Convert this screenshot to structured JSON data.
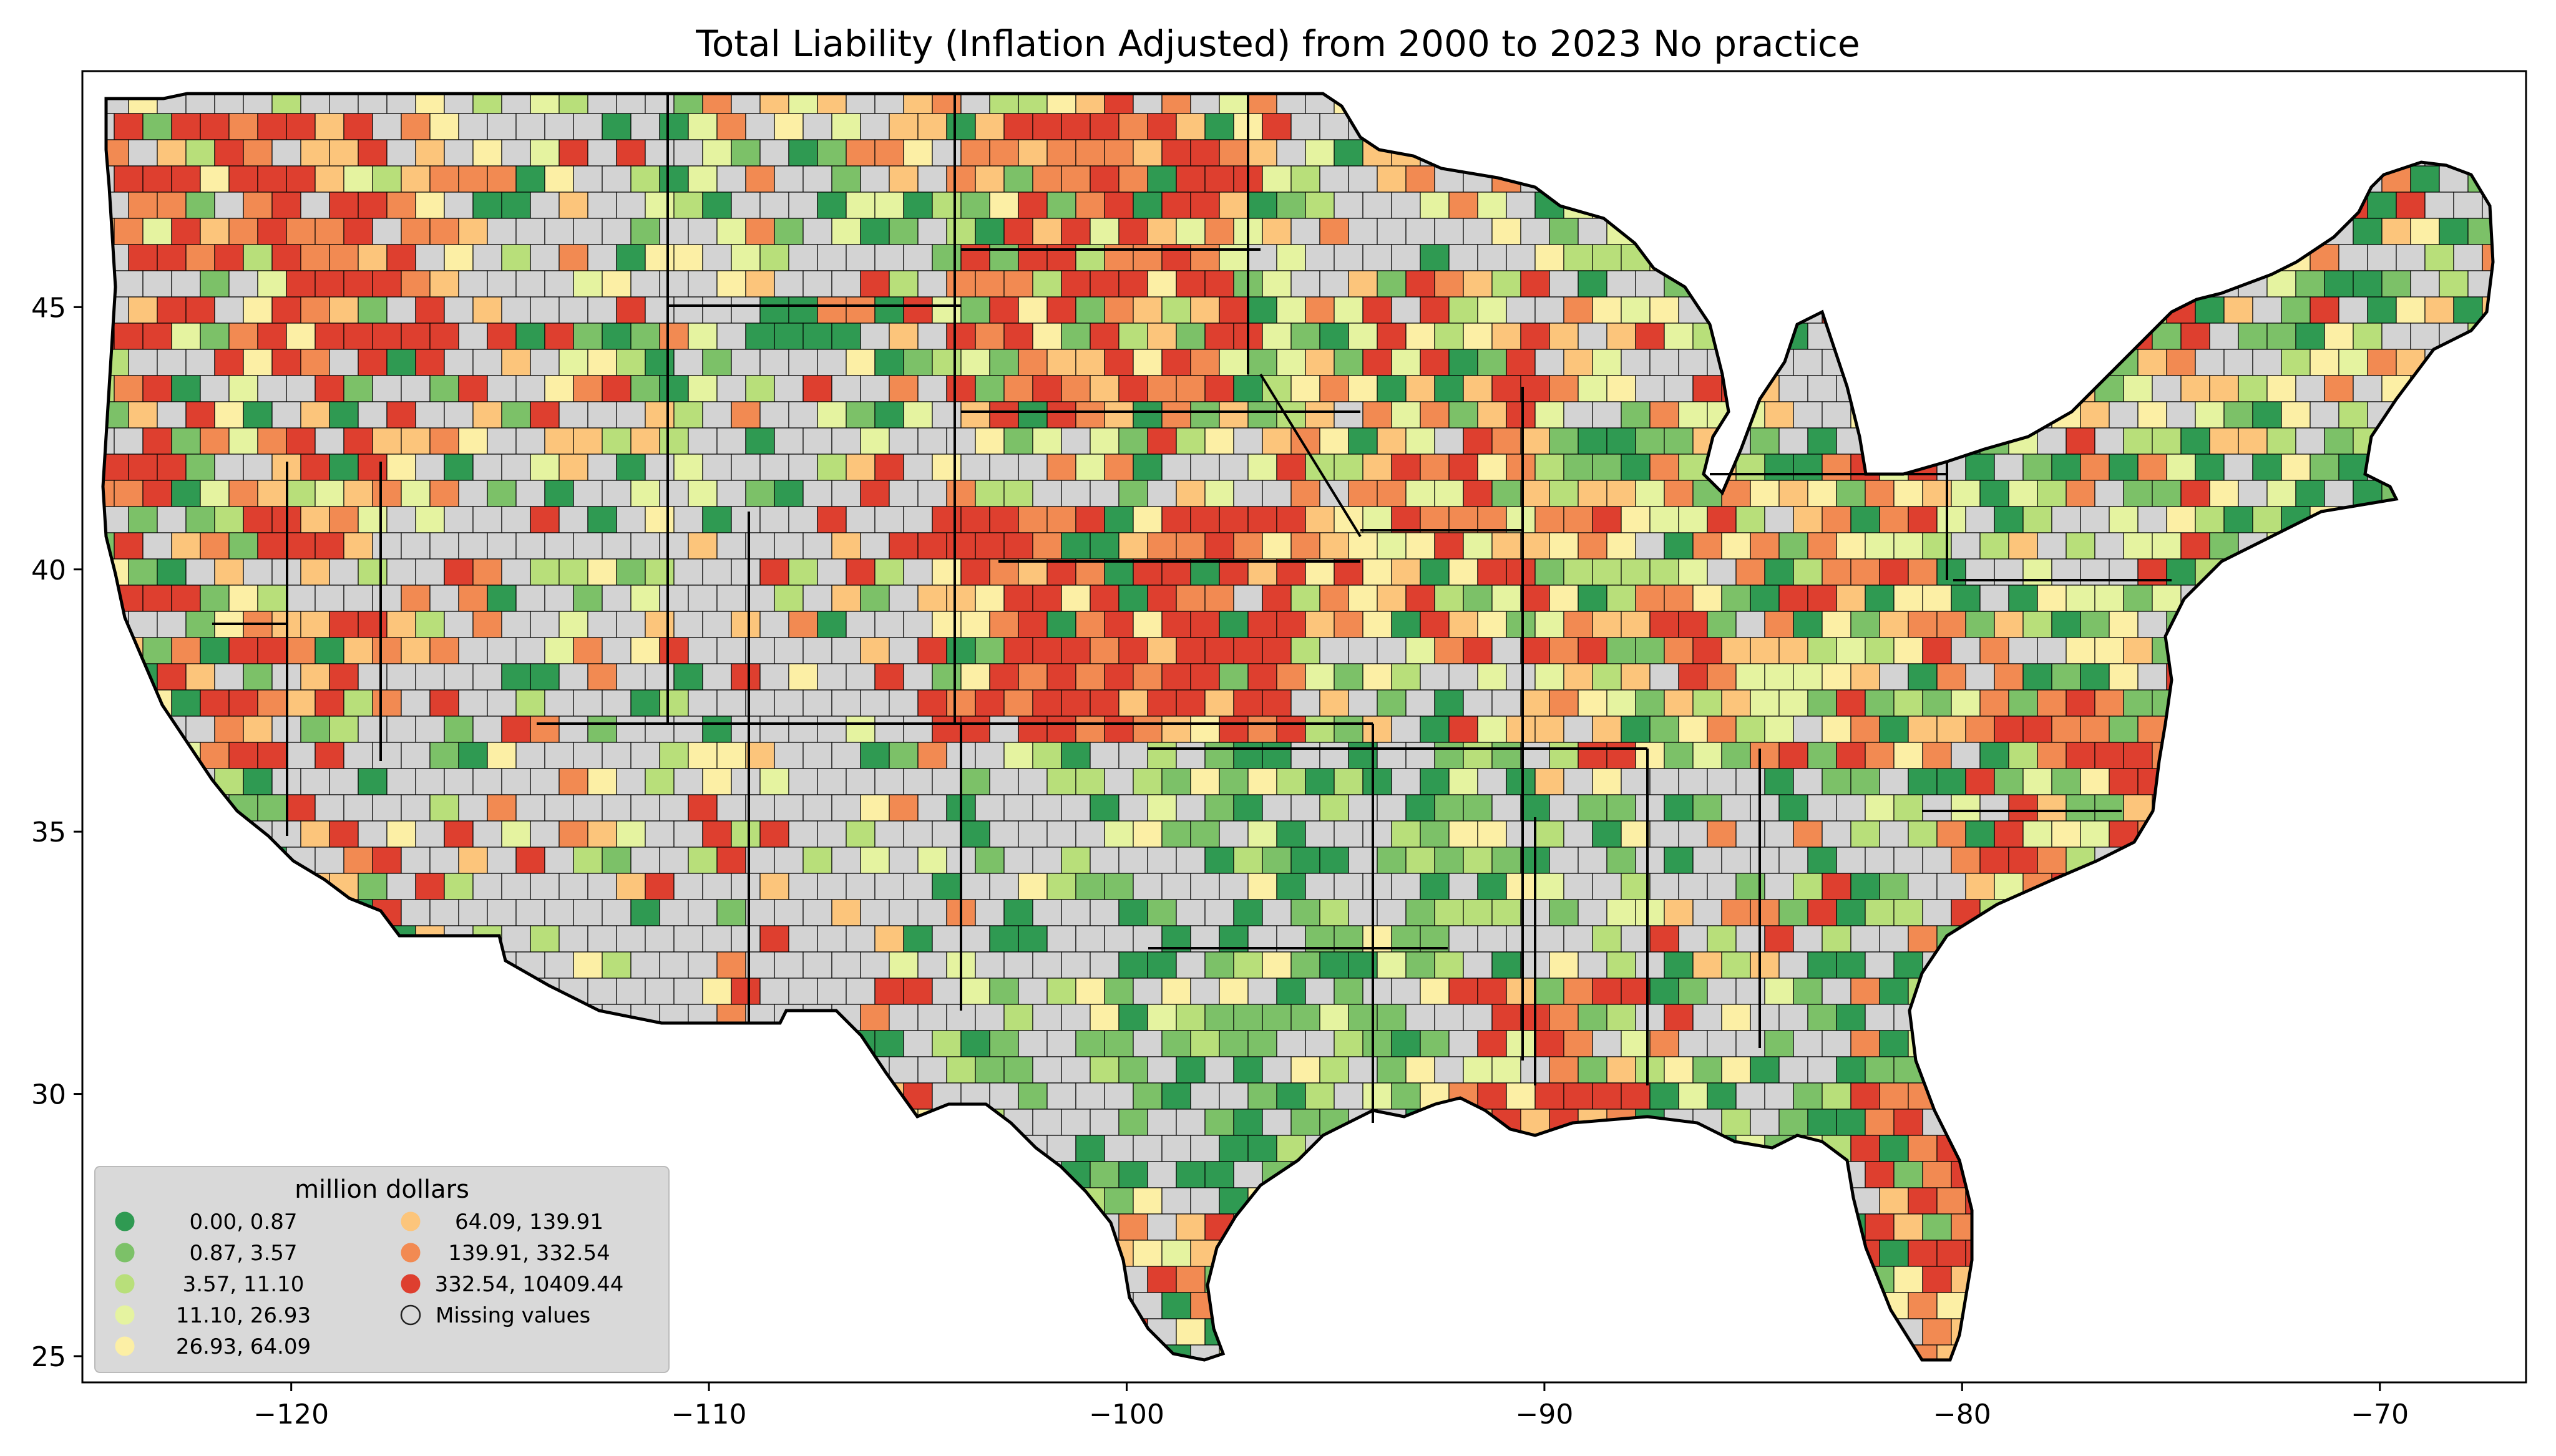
{
  "chart_data": {
    "type": "choropleth",
    "title": "Total Liability  (Inflation Adjusted) from 2000 to 2023 No practice",
    "x_axis": {
      "range": [
        -125,
        -66.5
      ],
      "ticks": [
        -120,
        -110,
        -100,
        -90,
        -80,
        -70
      ],
      "tick_labels": [
        "−120",
        "−110",
        "−100",
        "−90",
        "−80",
        "−70"
      ]
    },
    "y_axis": {
      "range": [
        24.5,
        49.5
      ],
      "ticks": [
        25,
        30,
        35,
        40,
        45
      ],
      "tick_labels": [
        "25",
        "30",
        "35",
        "40",
        "45"
      ]
    },
    "grid": false,
    "legend": {
      "title": "million dollars",
      "placement": "lower-left",
      "items": [
        {
          "label": "0.00,    0.87",
          "color": "#2f9a52"
        },
        {
          "label": "0.87,    3.57",
          "color": "#7cc168"
        },
        {
          "label": "3.57,    11.10",
          "color": "#b8df7a"
        },
        {
          "label": "11.10,    26.93",
          "color": "#e5f3a0"
        },
        {
          "label": "26.93,    64.09",
          "color": "#fcefa5"
        },
        {
          "label": "64.09,    139.91",
          "color": "#fcc57b"
        },
        {
          "label": "139.91,    332.54",
          "color": "#f28a52"
        },
        {
          "label": "332.54, 10409.44",
          "color": "#de3f2f"
        },
        {
          "label": "Missing values",
          "color": "#d3d3d3"
        }
      ]
    },
    "missing_color": "#d3d3d3"
  }
}
